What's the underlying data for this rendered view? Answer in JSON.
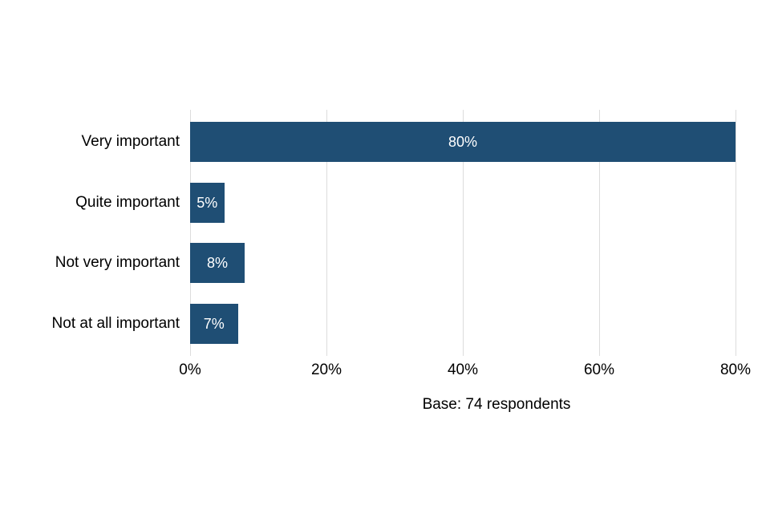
{
  "chart_data": {
    "type": "bar",
    "orientation": "horizontal",
    "title": "",
    "xlabel": "",
    "ylabel": "",
    "categories": [
      "Very important",
      "Quite important",
      "Not very important",
      "Not at all important"
    ],
    "values": [
      80,
      5,
      8,
      7
    ],
    "bar_labels": [
      "80%",
      "5%",
      "8%",
      "7%"
    ],
    "x_ticks": [
      0,
      20,
      40,
      60,
      80
    ],
    "x_tick_labels": [
      "0%",
      "20%",
      "40%",
      "60%",
      "80%"
    ],
    "xlim": [
      0,
      80
    ],
    "grid": "vertical",
    "legend": "none",
    "caption": "Base: 74 respondents",
    "colors": {
      "bar": "#1f4e74",
      "bar_label_text": "#ffffff",
      "gridline": "#dcdcdc",
      "text": "#000000",
      "background": "#ffffff"
    }
  }
}
